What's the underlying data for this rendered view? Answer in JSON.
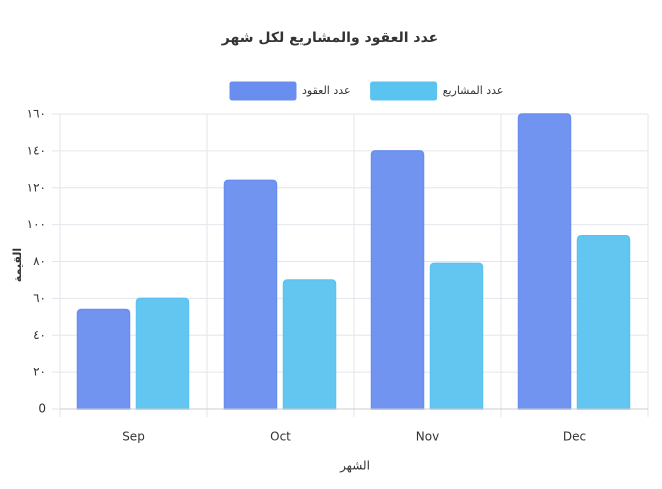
{
  "chart_data": {
    "type": "bar",
    "title": "عدد العقود والمشاريع لكل شهر",
    "x_label": "الشهر",
    "y_label": "القيمة",
    "categories": [
      "Sep",
      "Oct",
      "Nov",
      "Dec"
    ],
    "series": [
      {
        "name": "عدد العقود",
        "color": "#6a8ef0",
        "values": [
          54,
          124,
          140,
          160
        ]
      },
      {
        "name": "عدد المشاريع",
        "color": "#5bc3f0",
        "values": [
          60,
          70,
          79,
          94
        ]
      }
    ],
    "ylim": [
      0,
      160
    ],
    "yticks": [
      0,
      {
        "value": 20,
        "label": "٢٠"
      },
      {
        "value": 40,
        "label": "٤٠"
      },
      {
        "value": 60,
        "label": "٦٠"
      },
      {
        "value": 80,
        "label": "٨٠"
      },
      {
        "value": 100,
        "label": "١٠٠"
      },
      {
        "value": 120,
        "label": "١٢٠"
      },
      {
        "value": 140,
        "label": "١٤٠"
      },
      {
        "value": 160,
        "label": "١٦٠"
      }
    ],
    "grid": true,
    "legend": "top"
  }
}
